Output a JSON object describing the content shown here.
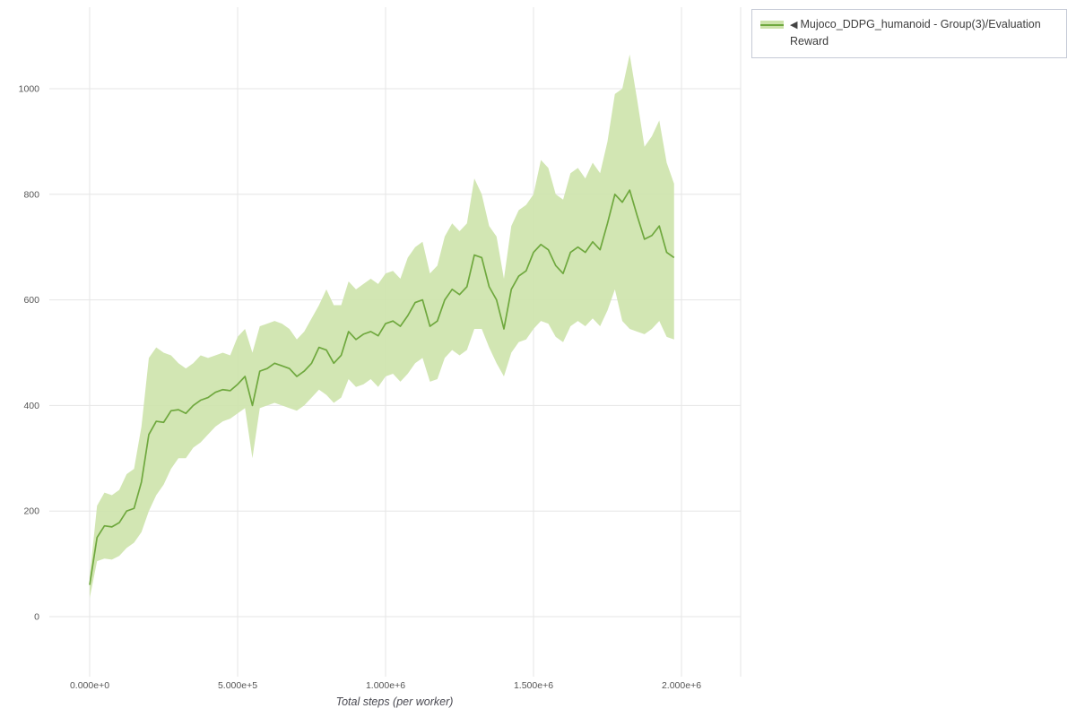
{
  "legend": {
    "collapse_icon": "◀",
    "label": "Mujoco_DDPG_humanoid - Group(3)/Evaluation Reward"
  },
  "chart": {
    "colors": {
      "line": "#6fa83e",
      "band": "#cde3ab",
      "grid": "#e6e6e6",
      "tick_text": "#555555"
    },
    "x_ticks": [
      {
        "value": 0,
        "label": "0.000e+0"
      },
      {
        "value": 500000,
        "label": "5.000e+5"
      },
      {
        "value": 1000000,
        "label": "1.000e+6"
      },
      {
        "value": 1500000,
        "label": "1.500e+6"
      },
      {
        "value": 2000000,
        "label": "2.000e+6"
      }
    ],
    "y_ticks": [
      {
        "value": 0,
        "label": "0"
      },
      {
        "value": 200,
        "label": "200"
      },
      {
        "value": 400,
        "label": "400"
      },
      {
        "value": 600,
        "label": "600"
      },
      {
        "value": 800,
        "label": "800"
      },
      {
        "value": 1000,
        "label": "1000"
      }
    ]
  },
  "chart_data": {
    "type": "line",
    "title": "",
    "xlabel": "Total steps (per worker)",
    "ylabel": "",
    "xlim": [
      0,
      2000000
    ],
    "ylim": [
      -120,
      1150
    ],
    "grid": true,
    "legend_position": "top-right",
    "x": [
      0,
      25000,
      50000,
      75000,
      100000,
      125000,
      150000,
      175000,
      200000,
      225000,
      250000,
      275000,
      300000,
      325000,
      350000,
      375000,
      400000,
      425000,
      450000,
      475000,
      500000,
      525000,
      550000,
      575000,
      600000,
      625000,
      650000,
      675000,
      700000,
      725000,
      750000,
      775000,
      800000,
      825000,
      850000,
      875000,
      900000,
      925000,
      950000,
      975000,
      1000000,
      1025000,
      1050000,
      1075000,
      1100000,
      1125000,
      1150000,
      1175000,
      1200000,
      1225000,
      1250000,
      1275000,
      1300000,
      1325000,
      1350000,
      1375000,
      1400000,
      1425000,
      1450000,
      1475000,
      1500000,
      1525000,
      1550000,
      1575000,
      1600000,
      1625000,
      1650000,
      1675000,
      1700000,
      1725000,
      1750000,
      1775000,
      1800000,
      1825000,
      1850000,
      1875000,
      1900000,
      1925000,
      1950000,
      1975000
    ],
    "series": [
      {
        "name": "Mujoco_DDPG_humanoid - Group(3)/Evaluation Reward",
        "values": [
          60,
          150,
          172,
          170,
          178,
          200,
          205,
          255,
          345,
          370,
          368,
          390,
          392,
          385,
          400,
          410,
          415,
          425,
          430,
          428,
          440,
          455,
          400,
          465,
          470,
          480,
          475,
          470,
          455,
          465,
          480,
          510,
          505,
          480,
          495,
          540,
          525,
          535,
          540,
          532,
          555,
          560,
          550,
          570,
          595,
          600,
          550,
          560,
          600,
          620,
          610,
          625,
          685,
          680,
          625,
          600,
          545,
          620,
          645,
          655,
          690,
          705,
          695,
          665,
          650,
          690,
          700,
          690,
          710,
          695,
          745,
          800,
          785,
          808,
          760,
          715,
          722,
          740,
          690,
          680
        ],
        "band_lower": [
          35,
          105,
          110,
          108,
          115,
          130,
          140,
          160,
          200,
          230,
          250,
          280,
          300,
          300,
          320,
          330,
          345,
          360,
          370,
          375,
          385,
          395,
          300,
          395,
          400,
          405,
          400,
          395,
          390,
          400,
          415,
          430,
          420,
          405,
          415,
          450,
          435,
          440,
          450,
          435,
          455,
          460,
          445,
          460,
          480,
          490,
          445,
          450,
          490,
          505,
          495,
          505,
          545,
          545,
          510,
          480,
          455,
          500,
          520,
          525,
          545,
          560,
          555,
          530,
          520,
          550,
          560,
          550,
          565,
          550,
          580,
          620,
          560,
          545,
          540,
          535,
          545,
          560,
          530,
          525
        ],
        "band_upper": [
          75,
          210,
          235,
          230,
          240,
          270,
          280,
          360,
          490,
          510,
          500,
          495,
          480,
          470,
          480,
          495,
          490,
          495,
          500,
          495,
          530,
          545,
          500,
          550,
          555,
          560,
          555,
          545,
          525,
          540,
          565,
          590,
          620,
          590,
          590,
          635,
          620,
          630,
          640,
          630,
          650,
          655,
          640,
          680,
          700,
          710,
          650,
          665,
          720,
          745,
          730,
          745,
          830,
          800,
          740,
          720,
          640,
          740,
          770,
          780,
          800,
          865,
          850,
          800,
          790,
          840,
          850,
          830,
          860,
          840,
          900,
          990,
          1000,
          1065,
          980,
          890,
          910,
          940,
          860,
          820
        ]
      }
    ]
  }
}
